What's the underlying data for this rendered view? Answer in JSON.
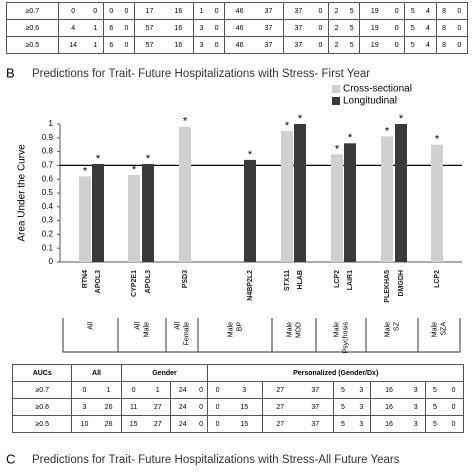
{
  "top_table": {
    "rows": [
      [
        "≥0.7",
        "0",
        "0",
        "0",
        "0",
        "17",
        "16",
        "1",
        "0",
        "46",
        "37",
        "37",
        "0",
        "2",
        "5",
        "19",
        "0",
        "5",
        "4",
        "8",
        "0"
      ],
      [
        "≥0.6",
        "4",
        "1",
        "6",
        "0",
        "57",
        "16",
        "3",
        "0",
        "46",
        "37",
        "37",
        "0",
        "2",
        "5",
        "19",
        "0",
        "5",
        "4",
        "8",
        "0"
      ],
      [
        "≥0.5",
        "14",
        "1",
        "6",
        "0",
        "57",
        "16",
        "3",
        "0",
        "46",
        "37",
        "37",
        "0",
        "2",
        "5",
        "19",
        "0",
        "5",
        "4",
        "8",
        "0"
      ]
    ]
  },
  "panel_b": {
    "letter": "B"
  },
  "chart_data": {
    "type": "bar",
    "title": "Predictions for Trait- Future Hospitalizations with Stress- First Year",
    "ylabel": "Area Under the Curve",
    "ylim": [
      0,
      1
    ],
    "yticks": [
      0,
      0.1,
      0.2,
      0.3,
      0.4,
      0.5,
      0.6,
      0.7,
      0.8,
      0.9,
      1
    ],
    "threshold": 0.7,
    "legend": "upper right",
    "groups": [
      {
        "label": [
          "All"
        ],
        "categories": [
          "RTN4",
          "APOL3"
        ]
      },
      {
        "label": [
          "All",
          "Male"
        ],
        "categories": [
          "CYP2E1",
          "APOL3"
        ]
      },
      {
        "label": [
          "All",
          "Female"
        ],
        "categories": [
          "PSD3"
        ]
      },
      {
        "label": [
          "Male",
          "BP"
        ],
        "categories": [
          "N4BP2L2"
        ]
      },
      {
        "label": [
          "Male",
          "MDD"
        ],
        "categories": [
          "STX11",
          "HLAB"
        ]
      },
      {
        "label": [
          "Male",
          "Psychosis"
        ],
        "categories": [
          "LCP2",
          "LAIR1"
        ]
      },
      {
        "label": [
          "Male",
          "SZ"
        ],
        "categories": [
          "PLEKHA5",
          "DMGDH"
        ]
      },
      {
        "label": [
          "Male",
          "SZA"
        ],
        "categories": [
          "LCP2"
        ]
      }
    ],
    "series": [
      {
        "name": "Cross-sectional",
        "color": "#d0d0d0",
        "values": [
          0.62,
          null,
          0.63,
          null,
          0.98,
          null,
          0.95,
          null,
          0.78,
          null,
          0.91,
          null,
          0.85
        ]
      },
      {
        "name": "Longitudinal",
        "color": "#3a3a3a",
        "values": [
          null,
          0.71,
          null,
          0.71,
          null,
          0.74,
          null,
          1.0,
          null,
          0.86,
          null,
          1.0,
          null
        ]
      }
    ],
    "significance": [
      "*",
      "*",
      "*",
      "*",
      "*",
      "*",
      "*",
      "*",
      "*",
      "*",
      "*",
      "*",
      "*"
    ]
  },
  "bottom_table": {
    "header": [
      "AUCs",
      "All",
      "Gender",
      "Personalized (Gender/Dx)"
    ],
    "rows": [
      [
        "≥0.7",
        "0",
        "1",
        "0",
        "1",
        "24",
        "0",
        "0",
        "3",
        "27",
        "37",
        "5",
        "3",
        "16",
        "3",
        "5",
        "0"
      ],
      [
        "≥0.6",
        "3",
        "26",
        "11",
        "27",
        "24",
        "0",
        "0",
        "15",
        "27",
        "37",
        "5",
        "3",
        "16",
        "3",
        "5",
        "0"
      ],
      [
        "≥0.5",
        "10",
        "26",
        "15",
        "27",
        "24",
        "0",
        "0",
        "15",
        "27",
        "37",
        "5",
        "3",
        "16",
        "3",
        "5",
        "0"
      ]
    ]
  },
  "panel_c": {
    "letter": "C",
    "title": "Predictions for Trait- Future Hospitalizations with Stress-All Future Years"
  }
}
